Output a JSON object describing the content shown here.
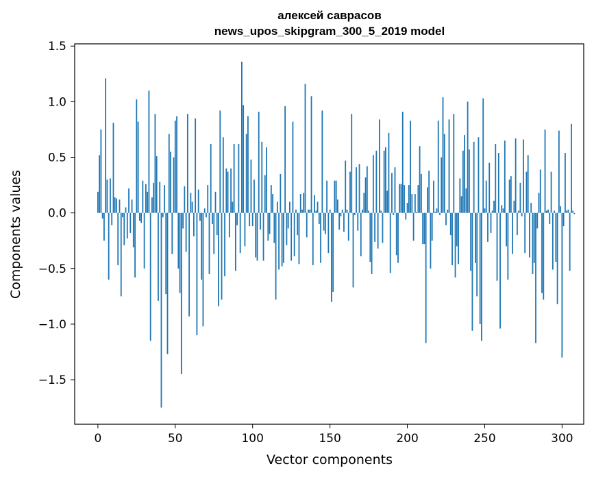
{
  "chart_data": {
    "type": "bar",
    "title_line1": "алексей саврасов",
    "title_line2": "news_upos_skipgram_300_5_2019 model",
    "xlabel": "Vector components",
    "ylabel": "Components values",
    "xlim": [
      -15,
      314
    ],
    "ylim": [
      -1.9,
      1.52
    ],
    "xticks": [
      {
        "value": 0,
        "label": "0"
      },
      {
        "value": 50,
        "label": "50"
      },
      {
        "value": 100,
        "label": "100"
      },
      {
        "value": 150,
        "label": "150"
      },
      {
        "value": 200,
        "label": "200"
      },
      {
        "value": 250,
        "label": "250"
      },
      {
        "value": 300,
        "label": "300"
      }
    ],
    "yticks": [
      {
        "value": 1.5,
        "label": "1.5"
      },
      {
        "value": 1.0,
        "label": "1.0"
      },
      {
        "value": 0.5,
        "label": "0.5"
      },
      {
        "value": 0.0,
        "label": "0.0"
      },
      {
        "value": -0.5,
        "label": "−0.5"
      },
      {
        "value": -1.0,
        "label": "−1.0"
      },
      {
        "value": -1.5,
        "label": "−1.5"
      }
    ],
    "bar_color": "#1f77b4",
    "values": [
      0.19,
      0.52,
      0.75,
      -0.05,
      -0.25,
      1.21,
      0.3,
      -0.6,
      0.31,
      -0.11,
      0.81,
      0.14,
      0.13,
      -0.47,
      0.12,
      -0.75,
      -0.04,
      -0.29,
      0.05,
      -0.23,
      0.22,
      -0.18,
      0.12,
      -0.31,
      -0.58,
      1.02,
      0.82,
      -0.07,
      -0.09,
      0.29,
      -0.5,
      0.26,
      0.19,
      1.1,
      -1.15,
      0.14,
      0.27,
      0.89,
      0.51,
      -0.79,
      0.28,
      -1.75,
      -0.04,
      0.25,
      -0.73,
      -1.27,
      0.71,
      0.55,
      -0.37,
      0.5,
      0.83,
      0.87,
      -0.5,
      -0.72,
      -1.45,
      -0.14,
      0.24,
      -0.35,
      0.89,
      -0.93,
      0.18,
      0.1,
      -0.21,
      0.85,
      -1.1,
      0.21,
      -0.07,
      -0.6,
      -1.02,
      0.04,
      -0.04,
      0.25,
      -0.55,
      0.62,
      -0.1,
      -0.37,
      0.19,
      -0.2,
      -0.84,
      0.92,
      -0.78,
      0.68,
      -0.57,
      0.4,
      0.37,
      -0.22,
      0.4,
      0.1,
      0.62,
      -0.52,
      -0.11,
      0.62,
      -0.36,
      1.36,
      0.97,
      -0.3,
      0.71,
      0.87,
      -0.12,
      0.48,
      -0.12,
      0.3,
      -0.4,
      -0.43,
      0.91,
      -0.15,
      0.64,
      -0.43,
      0.34,
      0.59,
      -0.25,
      -0.19,
      0.25,
      0.17,
      -0.27,
      -0.78,
      0.1,
      -0.51,
      0.35,
      -0.48,
      -0.45,
      0.96,
      -0.29,
      -0.14,
      0.1,
      -0.43,
      0.82,
      -0.39,
      0.03,
      -0.2,
      -0.46,
      0.17,
      0.03,
      0.18,
      1.16,
      -0.22,
      0.03,
      0.03,
      1.05,
      -0.47,
      0.16,
      0.02,
      0.1,
      -0.1,
      -0.45,
      0.92,
      -0.16,
      -0.19,
      0.29,
      -0.36,
      0.03,
      -0.8,
      -0.71,
      0.29,
      0.29,
      0.12,
      -0.15,
      -0.03,
      0.03,
      -0.17,
      0.47,
      0.03,
      -0.25,
      0.37,
      0.89,
      -0.67,
      -0.02,
      0.41,
      -0.16,
      0.44,
      -0.39,
      0.03,
      0.18,
      0.32,
      0.42,
      0.02,
      -0.44,
      -0.55,
      0.52,
      -0.26,
      0.56,
      -0.32,
      0.84,
      0.02,
      -0.27,
      0.56,
      0.59,
      0.2,
      0.72,
      -0.54,
      0.36,
      -0.02,
      0.41,
      -0.38,
      -0.45,
      0.26,
      0.26,
      0.91,
      0.25,
      -0.06,
      0.09,
      0.25,
      0.83,
      0.17,
      -0.25,
      0.17,
      0.01,
      0.25,
      0.6,
      0.35,
      -0.28,
      -0.28,
      -1.17,
      0.23,
      0.38,
      -0.5,
      -0.25,
      0.29,
      0.01,
      0.04,
      0.83,
      -0.02,
      0.5,
      1.04,
      0.71,
      -0.11,
      0.03,
      0.84,
      -0.2,
      -0.47,
      0.89,
      -0.58,
      -0.3,
      -0.46,
      0.31,
      0.15,
      0.56,
      0.7,
      0.22,
      1.0,
      0.57,
      -0.52,
      -1.06,
      0.64,
      -0.45,
      -0.75,
      0.68,
      -1.0,
      -1.15,
      1.03,
      0.04,
      0.29,
      -0.26,
      0.45,
      -0.18,
      0.02,
      0.11,
      0.62,
      -0.61,
      0.54,
      -1.04,
      0.07,
      0.04,
      0.65,
      -0.3,
      -0.6,
      0.3,
      0.33,
      -0.37,
      0.11,
      0.67,
      -0.2,
      0.02,
      0.27,
      -0.03,
      0.66,
      -0.36,
      0.37,
      0.52,
      -0.4,
      0.09,
      -0.55,
      -0.45,
      -1.17,
      -0.14,
      0.18,
      0.39,
      -0.72,
      -0.78,
      0.75,
      0.02,
      0.03,
      -0.1,
      0.37,
      -0.51,
      0.02,
      -0.44,
      -0.82,
      0.74,
      0.06,
      -1.3,
      -0.12,
      0.54,
      0.02,
      0.03,
      -0.52,
      0.8,
      0.02,
      -0.01
    ]
  }
}
